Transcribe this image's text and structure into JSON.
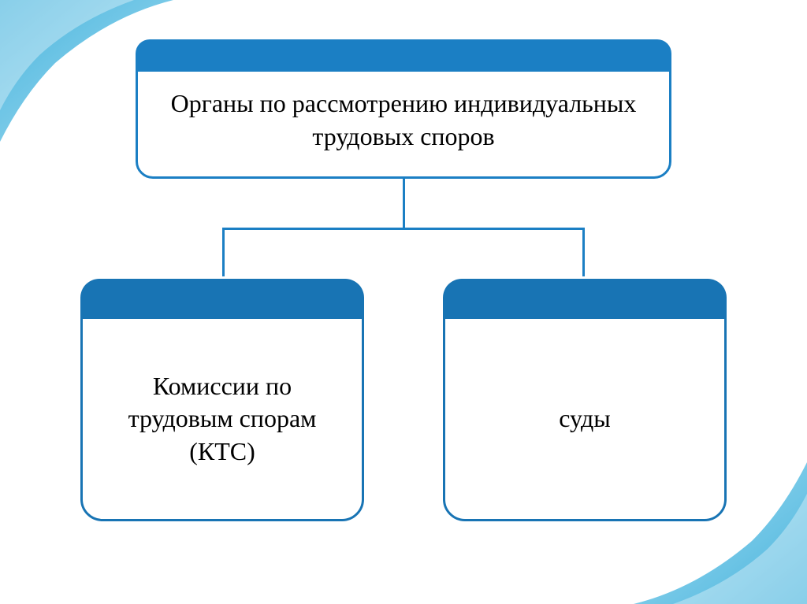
{
  "diagram": {
    "type": "tree",
    "root": {
      "label": "Органы по рассмотрению индивидуальных трудовых споров",
      "header_color": "#1b7fc4",
      "border_color": "#1b7fc4",
      "text_color": "#000000",
      "font_size": 32
    },
    "children": [
      {
        "label": "Комиссии по трудовым спорам (КТС)",
        "header_color": "#1874b4",
        "border_color": "#1874b4",
        "text_color": "#000000",
        "font_size": 32
      },
      {
        "label": "суды",
        "header_color": "#1874b4",
        "border_color": "#1874b4",
        "text_color": "#000000",
        "font_size": 32
      }
    ],
    "connector_color": "#1b7fc4",
    "connector_width": 3,
    "child_gap": 100,
    "child_width": 360,
    "horizontal_connector_width": 460
  },
  "decoration": {
    "gradient_start": "#2aa8d8",
    "gradient_end": "#6cc5e6",
    "highlight": "#ffffff"
  },
  "background_color": "#ffffff"
}
